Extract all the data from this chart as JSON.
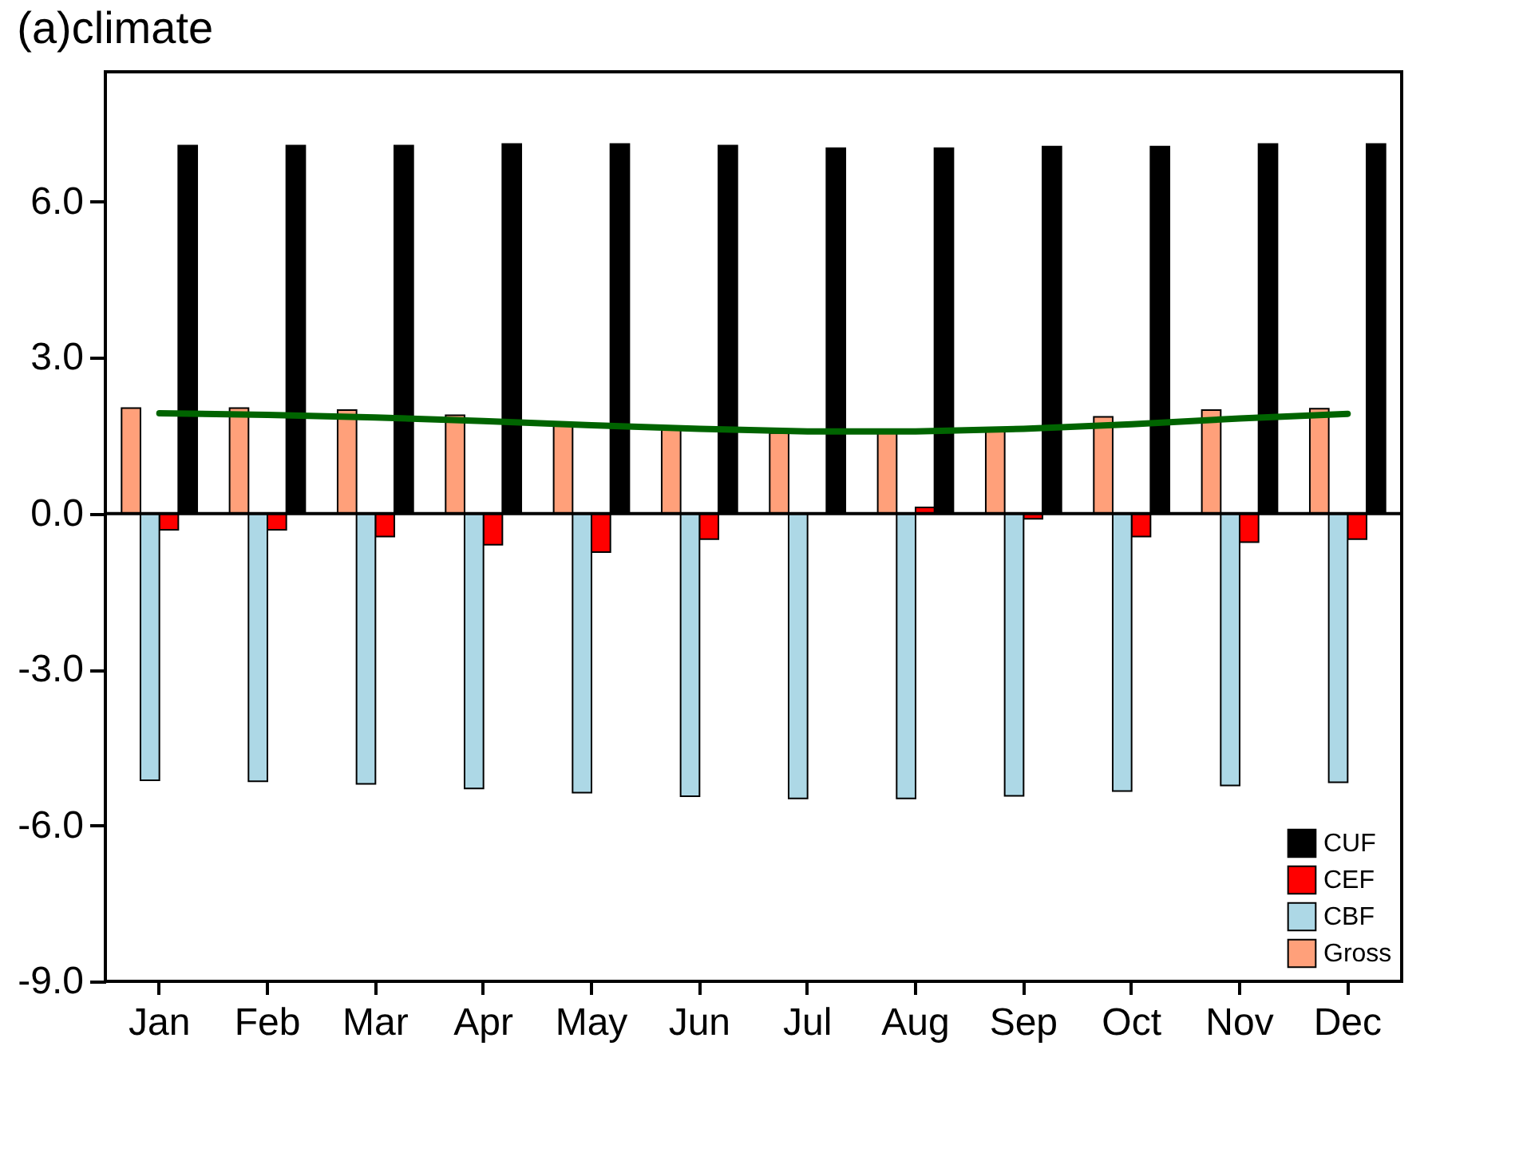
{
  "chart_data": {
    "type": "bar",
    "title": "(a)climate",
    "categories": [
      "Jan",
      "Feb",
      "Mar",
      "Apr",
      "May",
      "Jun",
      "Jul",
      "Aug",
      "Sep",
      "Oct",
      "Nov",
      "Dec"
    ],
    "series": [
      {
        "name": "CUF",
        "color": "#000000",
        "values": [
          7.08,
          7.08,
          7.08,
          7.11,
          7.11,
          7.08,
          7.03,
          7.03,
          7.06,
          7.06,
          7.11,
          7.11
        ]
      },
      {
        "name": "CEF",
        "color": "#ff0000",
        "values": [
          -0.31,
          -0.31,
          -0.44,
          -0.6,
          -0.74,
          -0.49,
          null,
          0.12,
          -0.1,
          -0.44,
          -0.55,
          -0.49
        ]
      },
      {
        "name": "CBF",
        "color": "#add8e6",
        "values": [
          -5.13,
          -5.15,
          -5.2,
          -5.29,
          -5.37,
          -5.44,
          -5.48,
          -5.48,
          -5.43,
          -5.34,
          -5.23,
          -5.17
        ]
      },
      {
        "name": "Gross",
        "color": "#ffa07a",
        "values": [
          2.03,
          2.03,
          1.99,
          1.89,
          1.69,
          1.62,
          1.55,
          1.55,
          1.65,
          1.86,
          1.99,
          2.02
        ]
      },
      {
        "type": "line",
        "color": "#006400",
        "values": [
          1.93,
          1.9,
          1.85,
          1.78,
          1.7,
          1.63,
          1.58,
          1.58,
          1.63,
          1.72,
          1.83,
          1.92
        ]
      }
    ],
    "ylim": [
      -9,
      8.5
    ],
    "yticks": [
      {
        "value": -9,
        "label": "-9.0"
      },
      {
        "value": -6,
        "label": "-6.0"
      },
      {
        "value": -3,
        "label": "-3.0"
      },
      {
        "value": 0,
        "label": "0.0"
      },
      {
        "value": 3,
        "label": "3.0"
      },
      {
        "value": 6,
        "label": "6.0"
      }
    ],
    "ref_lines": [
      {
        "axis": "y",
        "value": 0,
        "color": "#000000"
      }
    ],
    "grid": false,
    "legend": "bottom right"
  }
}
